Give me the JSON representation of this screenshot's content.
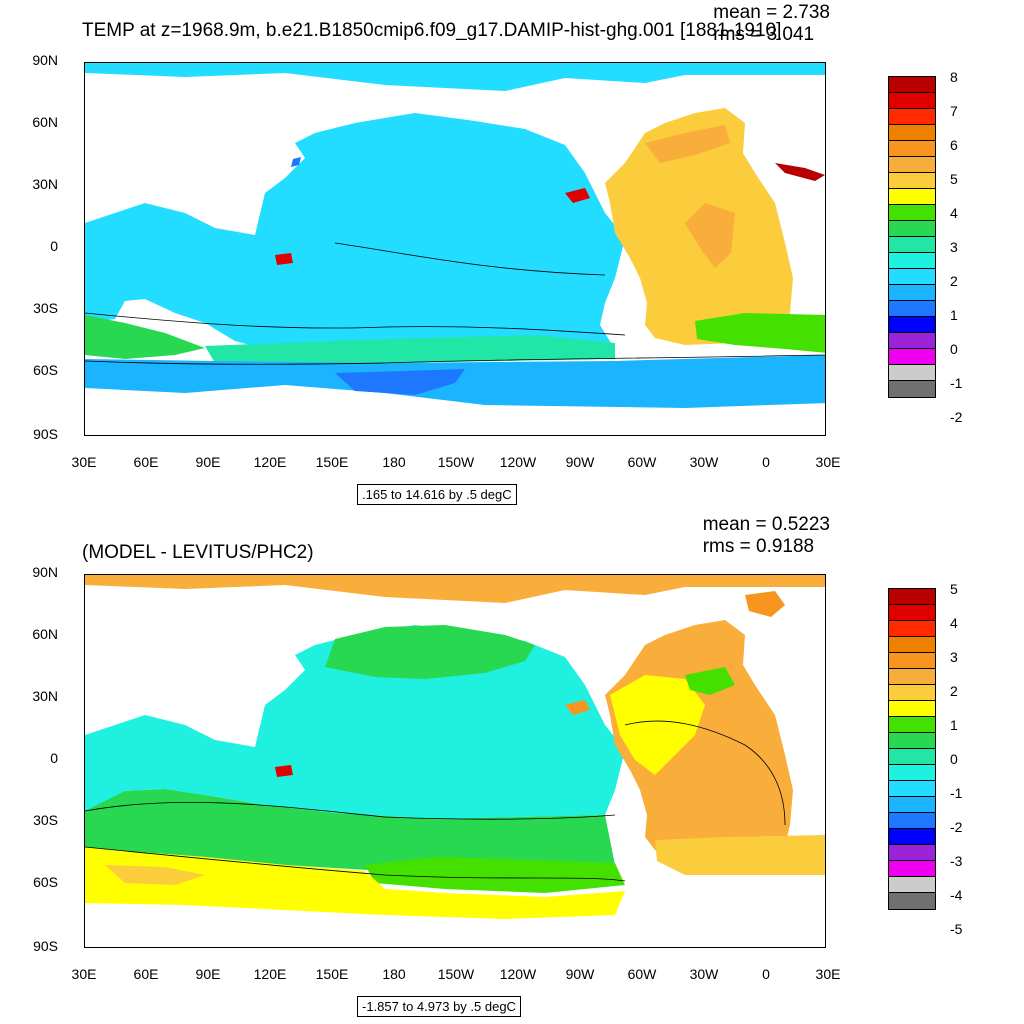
{
  "panels": [
    {
      "id": "top",
      "title": "TEMP at z=1968.9m, b.e21.B1850cmip6.f09_g17.DAMIP-hist-ghg.001 [1881-1910]",
      "mean_label": "mean = 2.738",
      "rms_label": "rms = 3.041",
      "contour_label": ".165 to 14.616 by .5 degC",
      "colorbar_labels": [
        "8",
        "7",
        "6",
        "5",
        "4",
        "3",
        "2",
        "1",
        "0",
        "-1",
        "-2"
      ],
      "colorbar_colors": [
        "#b80000",
        "#e00000",
        "#ff2a00",
        "#f08000",
        "#f7951f",
        "#f9ad3a",
        "#fbcc3c",
        "#ffff00",
        "#44e000",
        "#28d850",
        "#22e6a6",
        "#1ff0e0",
        "#22ddff",
        "#1ab4ff",
        "#1e78ff",
        "#0000ff",
        "#9a24d8",
        "#ee00ee",
        "#cccccc",
        "#707070"
      ]
    },
    {
      "id": "bottom",
      "title": "(MODEL - LEVITUS/PHC2)",
      "mean_label": "mean = 0.5223",
      "rms_label": "rms = 0.9188",
      "contour_label": "-1.857 to 4.973 by .5 degC",
      "colorbar_labels": [
        "5",
        "4",
        "3",
        "2",
        "1",
        "0",
        "-1",
        "-2",
        "-3",
        "-4",
        "-5"
      ],
      "colorbar_colors": [
        "#b80000",
        "#e00000",
        "#ff2a00",
        "#f08000",
        "#f7951f",
        "#f9ad3a",
        "#fbcc3c",
        "#ffff00",
        "#44e000",
        "#28d850",
        "#22e6a6",
        "#1ff0e0",
        "#22ddff",
        "#1ab4ff",
        "#1e78ff",
        "#0000ff",
        "#9a24d8",
        "#ee00ee",
        "#cccccc",
        "#707070"
      ]
    }
  ],
  "axes": {
    "lat_labels": [
      "90N",
      "60N",
      "30N",
      "0",
      "30S",
      "60S",
      "90S"
    ],
    "lon_labels": [
      "30E",
      "60E",
      "90E",
      "120E",
      "150E",
      "180",
      "150W",
      "120W",
      "90W",
      "60W",
      "30W",
      "0",
      "30E"
    ]
  },
  "palette": {
    "top_ocean_main": "#22ddff",
    "top_ocean_south": "#1ab4ff",
    "top_atlantic": "#fbcc3c",
    "top_southern_band": "#28d850",
    "bottom_pacific": "#1ff0e0",
    "bottom_ocean_green": "#28d850",
    "bottom_southern_yellow": "#ffff00",
    "bottom_atlantic": "#f9ad3a",
    "land": "#ffffff"
  }
}
